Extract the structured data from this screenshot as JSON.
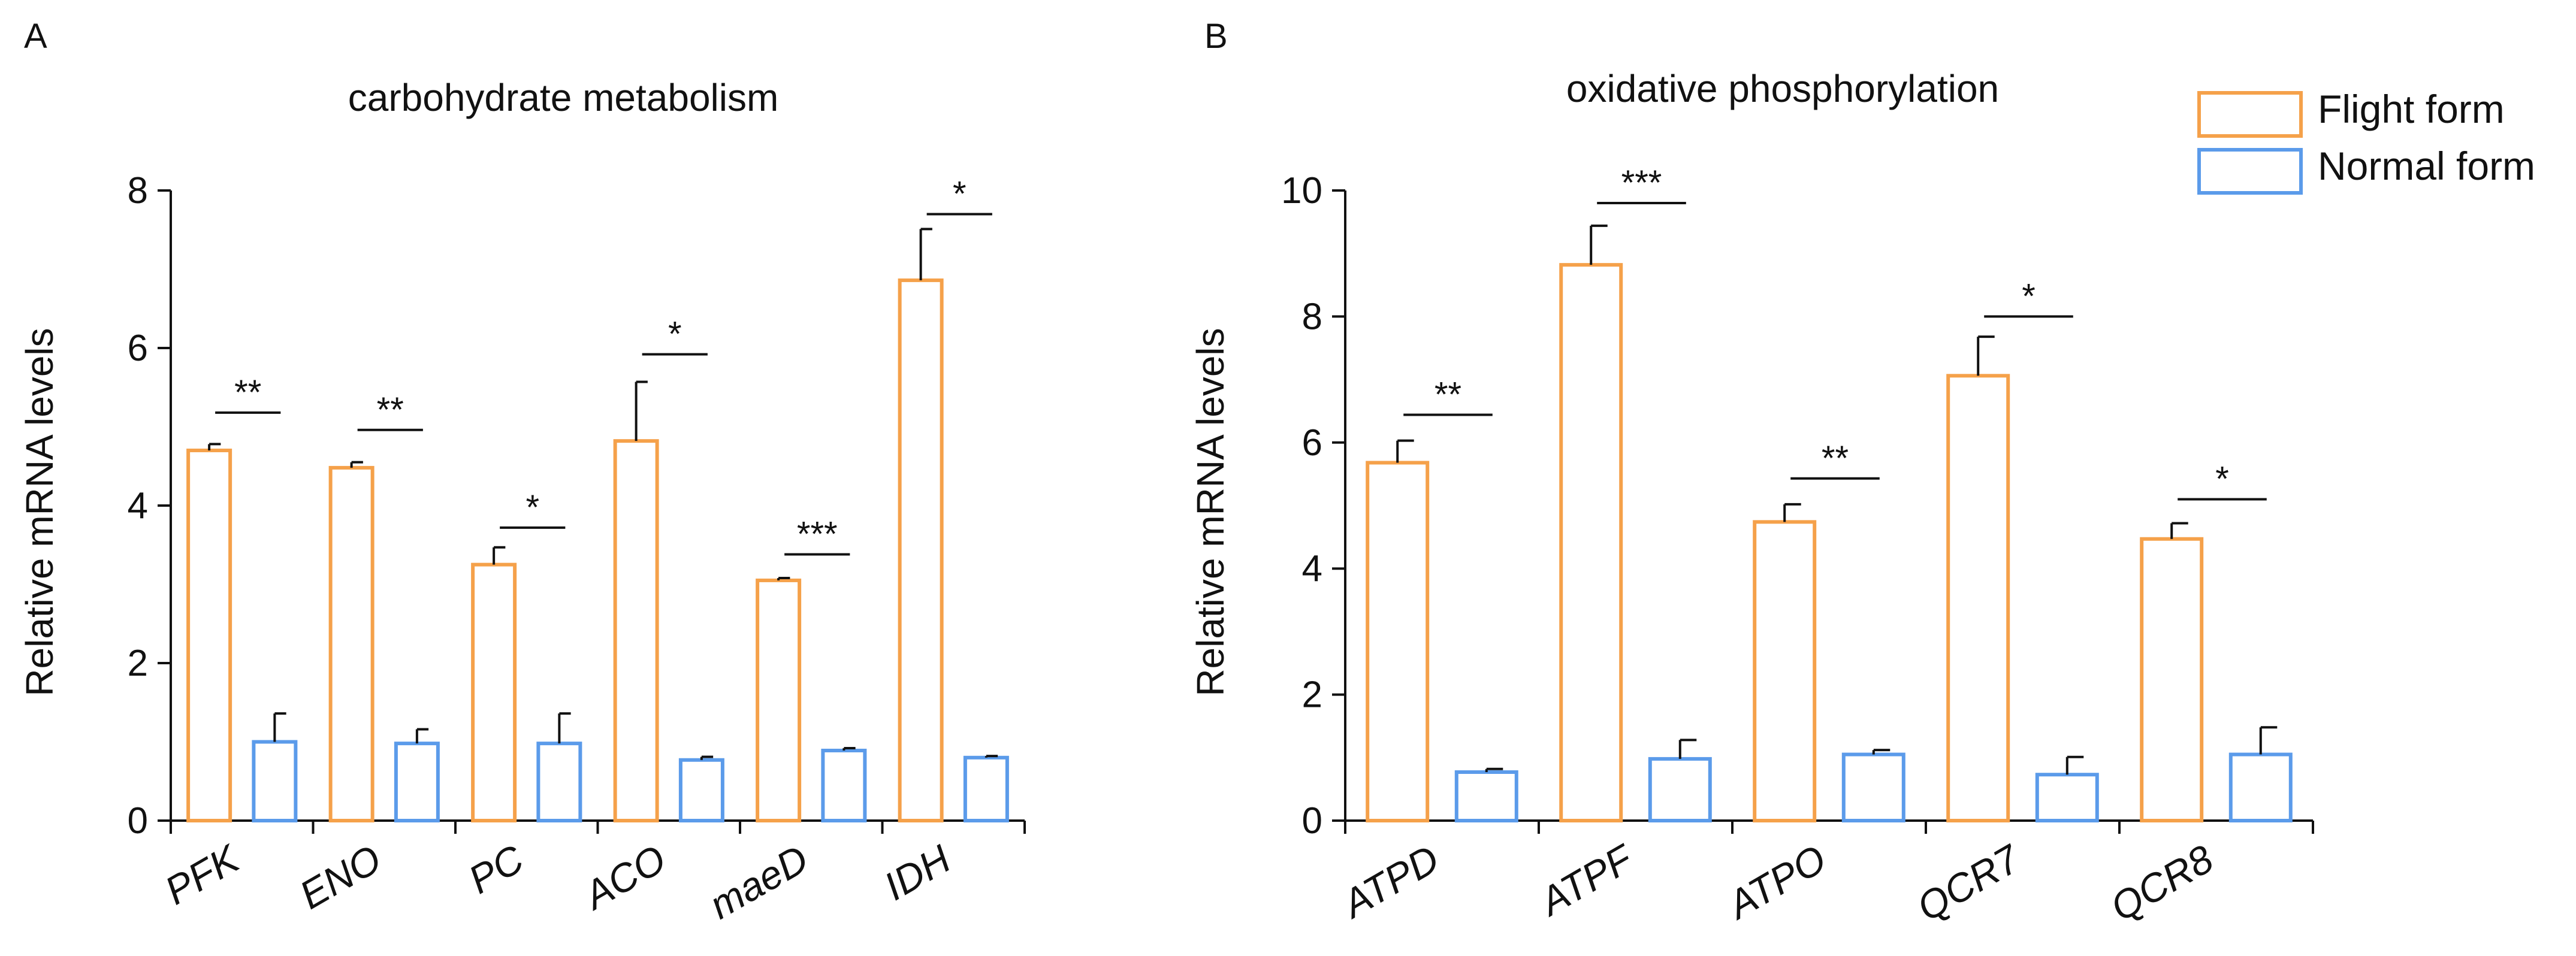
{
  "legend": {
    "entries": [
      {
        "name": "Flight form",
        "color": "#F5A14A"
      },
      {
        "name": "Normal form",
        "color": "#5B9BEA"
      }
    ]
  },
  "chart_data": [
    {
      "panel": "A",
      "type": "bar",
      "title": "carbohydrate metabolism",
      "xlabel": "",
      "ylabel": "Relative mRNA levels",
      "ylim": [
        0,
        8
      ],
      "yticks": [
        0,
        2,
        4,
        6,
        8
      ],
      "categories": [
        "PFK",
        "ENO",
        "PC",
        "ACO",
        "maeD",
        "IDH"
      ],
      "series": [
        {
          "name": "Flight form",
          "values": [
            4.7,
            4.48,
            3.25,
            4.82,
            3.05,
            6.86
          ],
          "errors": [
            0.08,
            0.07,
            0.22,
            0.75,
            0.03,
            0.65
          ]
        },
        {
          "name": "Normal form",
          "values": [
            1.0,
            0.98,
            0.98,
            0.77,
            0.89,
            0.8
          ],
          "errors": [
            0.36,
            0.18,
            0.38,
            0.04,
            0.03,
            0.02
          ]
        }
      ],
      "significance": [
        {
          "label": "**",
          "y": 5.18
        },
        {
          "label": "**",
          "y": 4.96
        },
        {
          "label": "*",
          "y": 3.72
        },
        {
          "label": "*",
          "y": 5.92
        },
        {
          "label": "***",
          "y": 3.38
        },
        {
          "label": "*",
          "y": 7.7
        }
      ]
    },
    {
      "panel": "B",
      "type": "bar",
      "title": "oxidative phosphorylation",
      "xlabel": "",
      "ylabel": "Relative mRNA levels",
      "ylim": [
        0,
        10
      ],
      "yticks": [
        0,
        2,
        4,
        6,
        8,
        10
      ],
      "categories": [
        "ATPD",
        "ATPF",
        "ATPO",
        "QCR7",
        "QCR8"
      ],
      "series": [
        {
          "name": "Flight form",
          "values": [
            5.68,
            8.82,
            4.74,
            7.06,
            4.47
          ],
          "errors": [
            0.35,
            0.62,
            0.28,
            0.62,
            0.25
          ]
        },
        {
          "name": "Normal form",
          "values": [
            0.77,
            0.98,
            1.05,
            0.73,
            1.05
          ],
          "errors": [
            0.05,
            0.3,
            0.07,
            0.28,
            0.43
          ]
        }
      ],
      "significance": [
        {
          "label": "**",
          "y": 6.44
        },
        {
          "label": "***",
          "y": 9.8
        },
        {
          "label": "**",
          "y": 5.43
        },
        {
          "label": "*",
          "y": 8.0
        },
        {
          "label": "*",
          "y": 5.1
        }
      ]
    }
  ]
}
